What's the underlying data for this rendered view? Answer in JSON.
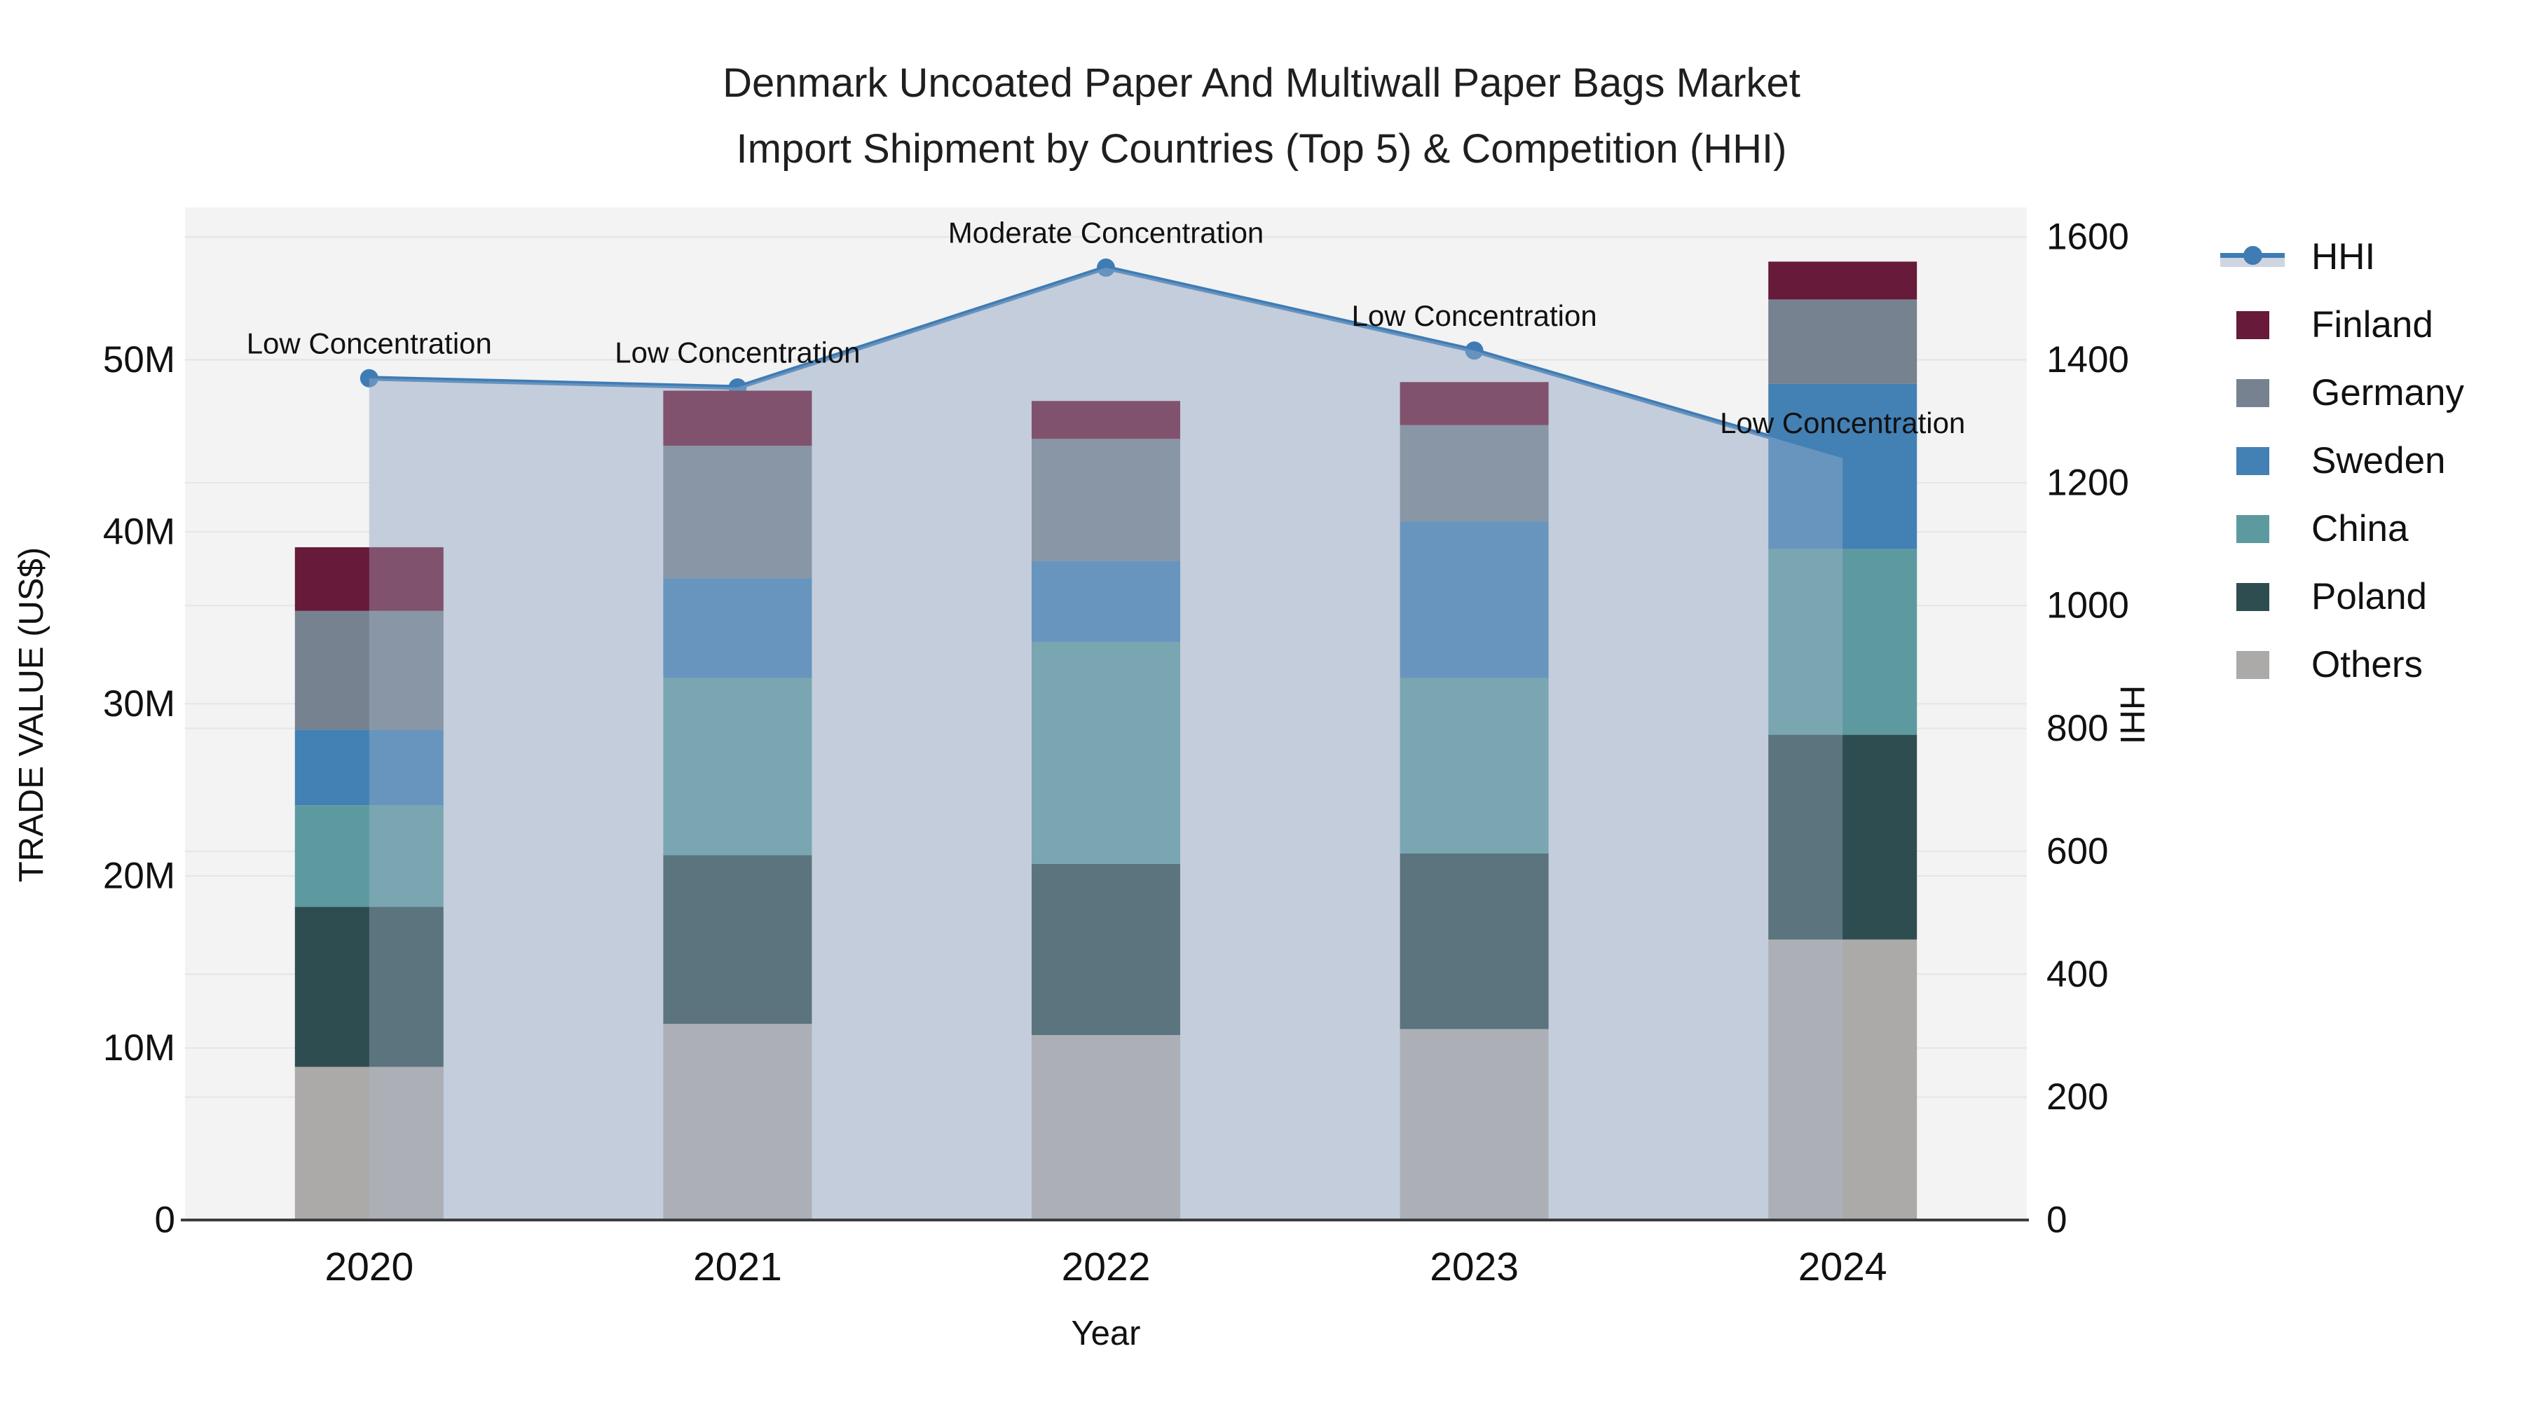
{
  "title": {
    "line1": "Denmark Uncoated Paper And Multiwall Paper Bags Market",
    "line2": "Import Shipment by Countries (Top 5) & Competition (HHI)"
  },
  "axes": {
    "x": {
      "title": "Year",
      "ticks": [
        "2020",
        "2021",
        "2022",
        "2023",
        "2024"
      ]
    },
    "y_left": {
      "title": "TRADE VALUE (US$)",
      "ticks": [
        "0",
        "10M",
        "20M",
        "30M",
        "40M",
        "50M"
      ],
      "tick_values": [
        0,
        10,
        20,
        30,
        40,
        50
      ]
    },
    "y_right": {
      "title": "HHI",
      "ticks": [
        "0",
        "200",
        "400",
        "600",
        "800",
        "1000",
        "1200",
        "1400",
        "1600"
      ],
      "tick_values": [
        0,
        200,
        400,
        600,
        800,
        1000,
        1200,
        1400,
        1600
      ]
    }
  },
  "legend": {
    "items": [
      {
        "label": "HHI",
        "type": "line",
        "color": "#3f7cb4"
      },
      {
        "label": "Finland",
        "type": "bar",
        "color": "#671a39"
      },
      {
        "label": "Germany",
        "type": "bar",
        "color": "#76828f"
      },
      {
        "label": "Sweden",
        "type": "bar",
        "color": "#4380b4"
      },
      {
        "label": "China",
        "type": "bar",
        "color": "#5d9aa0"
      },
      {
        "label": "Poland",
        "type": "bar",
        "color": "#2e4d50"
      },
      {
        "label": "Others",
        "type": "bar",
        "color": "#abaaa8"
      }
    ]
  },
  "chart_data": {
    "type": "bar",
    "subtype": "stacked-bars-with-line-overlay",
    "x": [
      2020,
      2021,
      2022,
      2023,
      2024
    ],
    "value_units": "millions USD",
    "series": [
      {
        "name": "Others",
        "color": "#abaaa8",
        "values": [
          8.9,
          11.4,
          10.75,
          11.1,
          16.3
        ]
      },
      {
        "name": "Poland",
        "color": "#2e4d50",
        "values": [
          9.3,
          9.8,
          9.95,
          10.2,
          11.9
        ]
      },
      {
        "name": "China",
        "color": "#5d9aa0",
        "values": [
          5.9,
          10.3,
          12.9,
          10.2,
          10.8
        ]
      },
      {
        "name": "Sweden",
        "color": "#4380b4",
        "values": [
          4.4,
          5.8,
          4.7,
          9.1,
          9.6
        ]
      },
      {
        "name": "Germany",
        "color": "#76828f",
        "values": [
          6.9,
          7.7,
          7.1,
          5.6,
          4.9
        ]
      },
      {
        "name": "Finland",
        "color": "#671a39",
        "values": [
          3.7,
          3.2,
          2.2,
          2.5,
          2.2
        ]
      }
    ],
    "bar_totals": [
      39.1,
      48.2,
      47.6,
      48.7,
      55.7
    ],
    "line": {
      "name": "HHI",
      "color": "#3f7cb4",
      "band_color": "#cfd6e1",
      "band_overlay": "rgba(175,188,208,0.35)",
      "values": [
        1370,
        1355,
        1550,
        1415,
        1240
      ]
    },
    "annotations": [
      {
        "x": 2020,
        "text": "Low Concentration"
      },
      {
        "x": 2021,
        "text": "Low Concentration"
      },
      {
        "x": 2022,
        "text": "Moderate Concentration"
      },
      {
        "x": 2023,
        "text": "Low Concentration"
      },
      {
        "x": 2024,
        "text": "Low Concentration"
      }
    ],
    "title": "Denmark Uncoated Paper And Multiwall Paper Bags Market Import Shipment by Countries (Top 5) & Competition (HHI)",
    "xlabel": "Year",
    "ylabel_left": "TRADE VALUE (US$)",
    "ylabel_right": "HHI",
    "y_left_range": [
      0,
      58.85
    ],
    "y_right_range": [
      0,
      1648
    ],
    "grid": true,
    "legend_position": "right",
    "plot_bg": "#f3f3f3",
    "grid_color": "#e5e5e5"
  }
}
